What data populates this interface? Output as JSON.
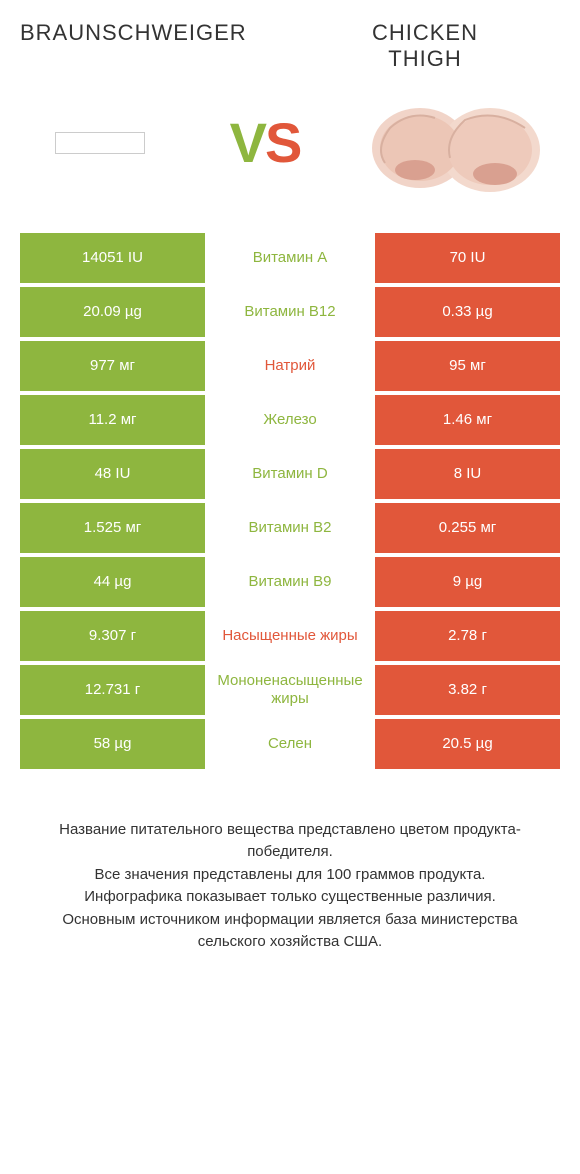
{
  "titles": {
    "left": "BRAUNSCHWEIGER",
    "right": "CHICKEN THIGH"
  },
  "vs": {
    "v": "V",
    "s": "S"
  },
  "colors": {
    "green": "#8eb63f",
    "orange": "#e1573a",
    "white": "#ffffff",
    "text": "#333333"
  },
  "rows": [
    {
      "left": "14051 IU",
      "mid": "Витамин A",
      "right": "70 IU",
      "mid_color": "green"
    },
    {
      "left": "20.09 µg",
      "mid": "Витамин B12",
      "right": "0.33 µg",
      "mid_color": "green"
    },
    {
      "left": "977 мг",
      "mid": "Натрий",
      "right": "95 мг",
      "mid_color": "orange"
    },
    {
      "left": "11.2 мг",
      "mid": "Железо",
      "right": "1.46 мг",
      "mid_color": "green"
    },
    {
      "left": "48 IU",
      "mid": "Витамин D",
      "right": "8 IU",
      "mid_color": "green"
    },
    {
      "left": "1.525 мг",
      "mid": "Витамин B2",
      "right": "0.255 мг",
      "mid_color": "green"
    },
    {
      "left": "44 µg",
      "mid": "Витамин B9",
      "right": "9 µg",
      "mid_color": "green"
    },
    {
      "left": "9.307 г",
      "mid": "Насыщенные жиры",
      "right": "2.78 г",
      "mid_color": "orange"
    },
    {
      "left": "12.731 г",
      "mid": "Мононенасыщенные жиры",
      "right": "3.82 г",
      "mid_color": "green"
    },
    {
      "left": "58 µg",
      "mid": "Селен",
      "right": "20.5 µg",
      "mid_color": "green"
    }
  ],
  "footer": {
    "l1": "Название питательного вещества представлено цветом продукта-победителя.",
    "l2": "Все значения представлены для 100 граммов продукта.",
    "l3": "Инфографика показывает только существенные различия.",
    "l4": "Основным источником информации является база министерства сельского хозяйства США."
  }
}
